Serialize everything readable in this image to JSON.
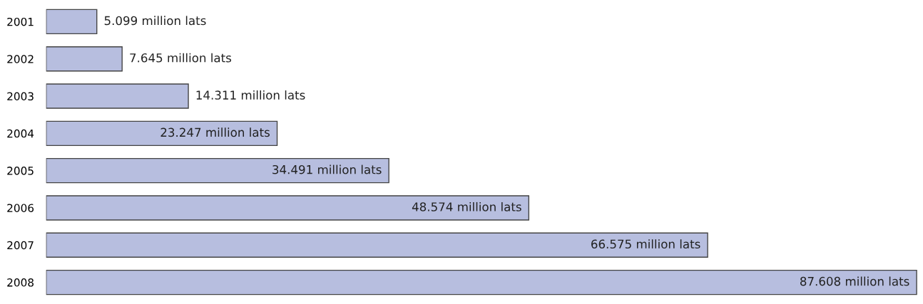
{
  "chart_data": {
    "type": "bar",
    "orientation": "horizontal",
    "categories": [
      "2001",
      "2002",
      "2003",
      "2004",
      "2005",
      "2006",
      "2007",
      "2008"
    ],
    "values": [
      5.099,
      7.645,
      14.311,
      23.247,
      34.491,
      48.574,
      66.575,
      87.608
    ],
    "value_labels": [
      "5.099 million lats",
      "7.645 million lats",
      "14.311 million lats",
      "23.247 million lats",
      "34.491 million lats",
      "48.574 million lats",
      "66.575 million lats",
      "87.608 million lats"
    ],
    "color": "#b7bedf",
    "grid": false,
    "legend": false
  }
}
